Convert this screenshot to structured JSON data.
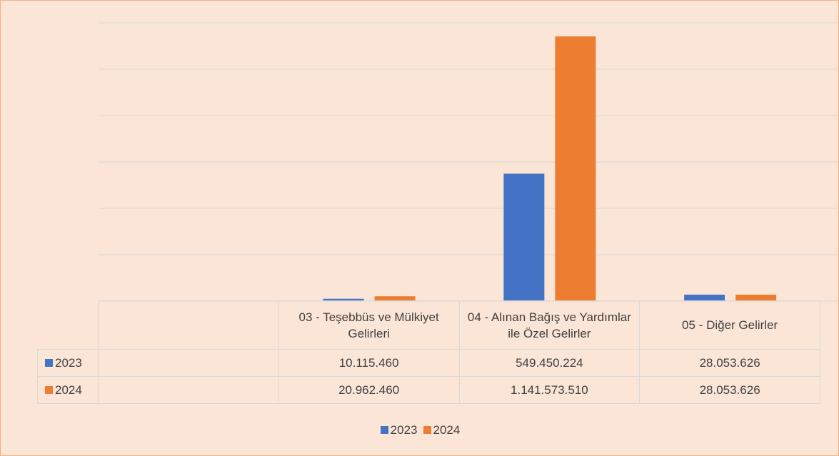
{
  "chart_data": {
    "type": "bar",
    "categories": [
      null,
      "03 - Teşebbüs ve Mülkiyet Gelirleri",
      "04 - Alınan Bağış ve Yardımlar ile Özel Gelirler",
      "05 - Diğer Gelirler"
    ],
    "series": [
      {
        "name": "2023",
        "color": "#4472c4",
        "values": [
          null,
          10115460,
          549450224,
          28053626
        ],
        "value_labels": [
          null,
          "10.115.460",
          "549.450.224",
          "28.053.626"
        ]
      },
      {
        "name": "2024",
        "color": "#ed7d31",
        "values": [
          null,
          20962460,
          1141573510,
          28053626
        ],
        "value_labels": [
          null,
          "20.962.460",
          "1.141.573.510",
          "28.053.626"
        ]
      }
    ],
    "ylim": [
      0,
      1200000000
    ],
    "yticks": [
      0,
      200000000,
      400000000,
      600000000,
      800000000,
      1000000000,
      1200000000
    ],
    "grid": true,
    "tick_labels": false,
    "data_table": true,
    "legend": "bottom"
  }
}
